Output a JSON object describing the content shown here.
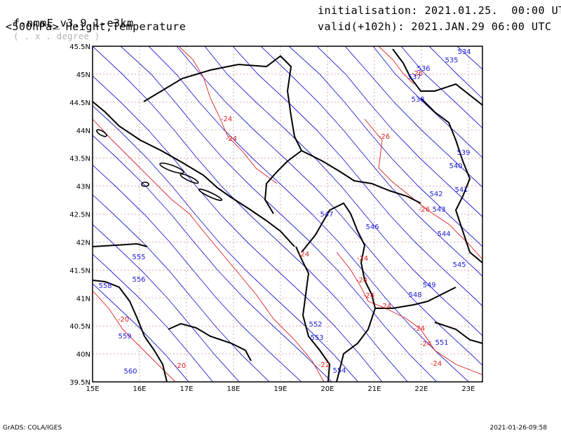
{
  "header": {
    "model": "f-nmmE_v3.9.1-e3km",
    "model_sub": "( . x . degree )",
    "field": "<500hPa> Height,Temperature",
    "init": "initialisation: 2021.01.25.  00:00 UTC",
    "valid": "valid(+102h): 2021.JAN.29 06:00 UTC"
  },
  "footer": {
    "left": "GrADS: COLA/IGES",
    "right": "2021-01-26-09:58"
  },
  "colors": {
    "height_contour": "#2020d8",
    "temperature_contour": "#e02020",
    "coastline": "#000000",
    "grid": "#c87878"
  },
  "map": {
    "lon_min": 15,
    "lon_max": 23.3,
    "lat_min": 39.5,
    "lat_max": 45.5,
    "lon_ticks": [
      "15E",
      "16E",
      "17E",
      "18E",
      "19E",
      "20E",
      "21E",
      "22E",
      "23E"
    ],
    "lat_ticks": [
      "45.5N",
      "45N",
      "44.5N",
      "44N",
      "43.5N",
      "43N",
      "42.5N",
      "42N",
      "41.5N",
      "41N",
      "40.5N",
      "40N",
      "39.5N"
    ],
    "height_labels": [
      "534",
      "535",
      "536",
      "537",
      "538",
      "539",
      "540",
      "541",
      "542",
      "543",
      "544",
      "545",
      "546",
      "547",
      "548",
      "549",
      "551",
      "552",
      "553",
      "554",
      "555",
      "556",
      "558",
      "559",
      "560"
    ],
    "temperature_labels": [
      "-26",
      "-26",
      "-26",
      "-24",
      "-24",
      "-24",
      "-24",
      "-24",
      "-24",
      "-24",
      "-24",
      "-24",
      "-20",
      "-20",
      "-22",
      "-24"
    ]
  }
}
